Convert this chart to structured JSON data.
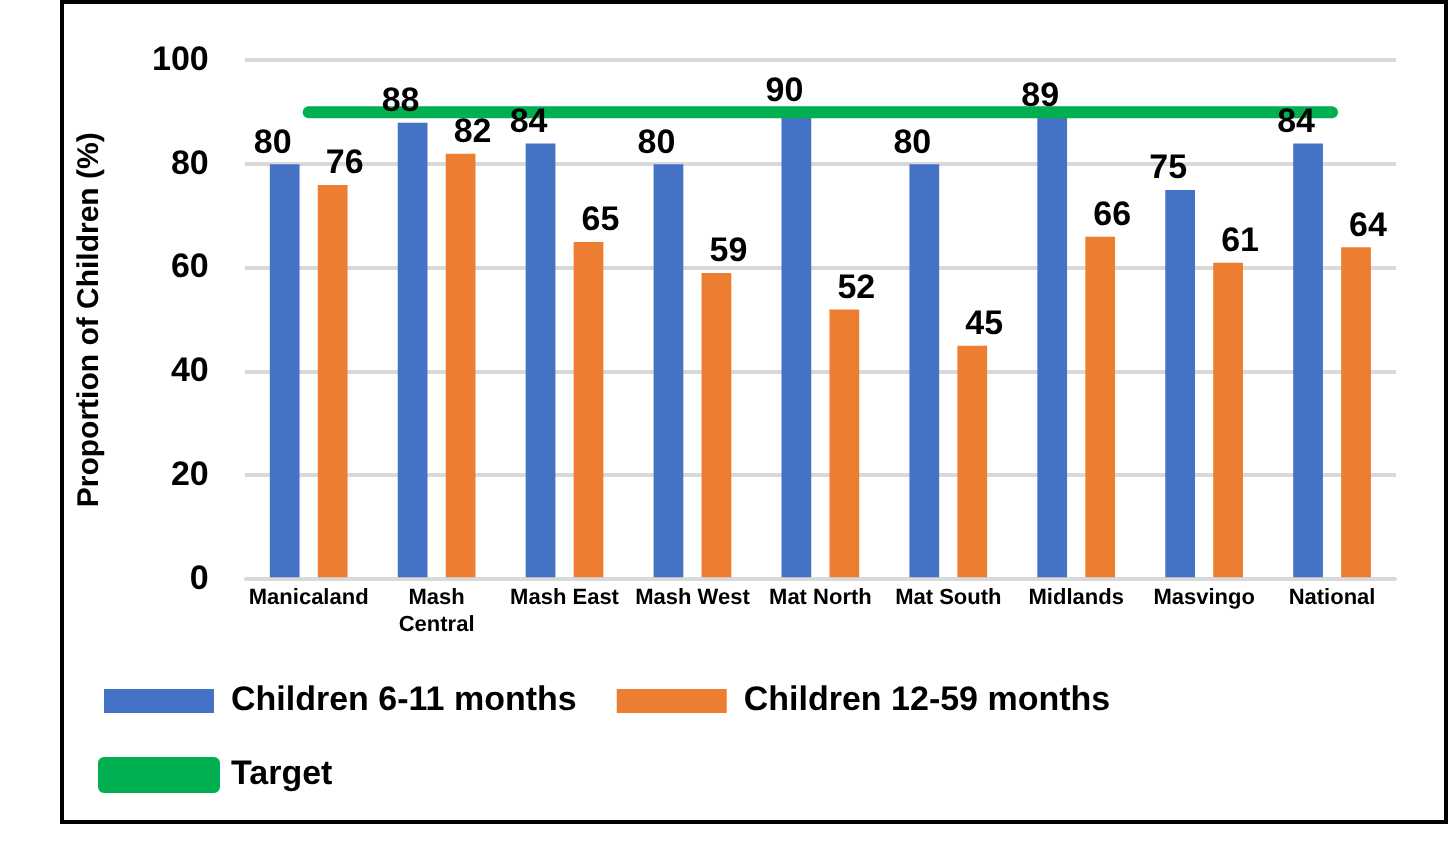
{
  "chart_data": {
    "type": "bar",
    "ylabel": "Proportion of Children (%)",
    "categories": [
      "Manicaland",
      "Mash Central",
      "Mash East",
      "Mash West",
      "Mat North",
      "Mat South",
      "Midlands",
      "Masvingo",
      "National"
    ],
    "series": [
      {
        "name": "Children 6-11 months",
        "color": "#4472c4",
        "values": [
          80,
          88,
          84,
          80,
          90,
          80,
          89,
          75,
          84
        ],
        "value_labels": [
          "80",
          "88",
          "84",
          "80",
          "90",
          "80",
          "89",
          "75",
          "84"
        ]
      },
      {
        "name": "Children 12-59 months",
        "color": "#ed7d31",
        "values": [
          76,
          82,
          65,
          59,
          52,
          45,
          66,
          61,
          64
        ],
        "value_labels": [
          "76",
          "82",
          "65",
          "59",
          "52",
          "45",
          "66",
          "61",
          "64"
        ]
      },
      {
        "name": "Target",
        "type": "line",
        "color": "#00b050",
        "values": [
          90,
          90,
          90,
          90,
          90,
          90,
          90,
          90,
          90
        ]
      }
    ],
    "ylim": [
      0,
      100
    ],
    "yticks": [
      0,
      20,
      40,
      60,
      80,
      100
    ],
    "grid": "y",
    "legend": "bottom",
    "marker": "none"
  }
}
